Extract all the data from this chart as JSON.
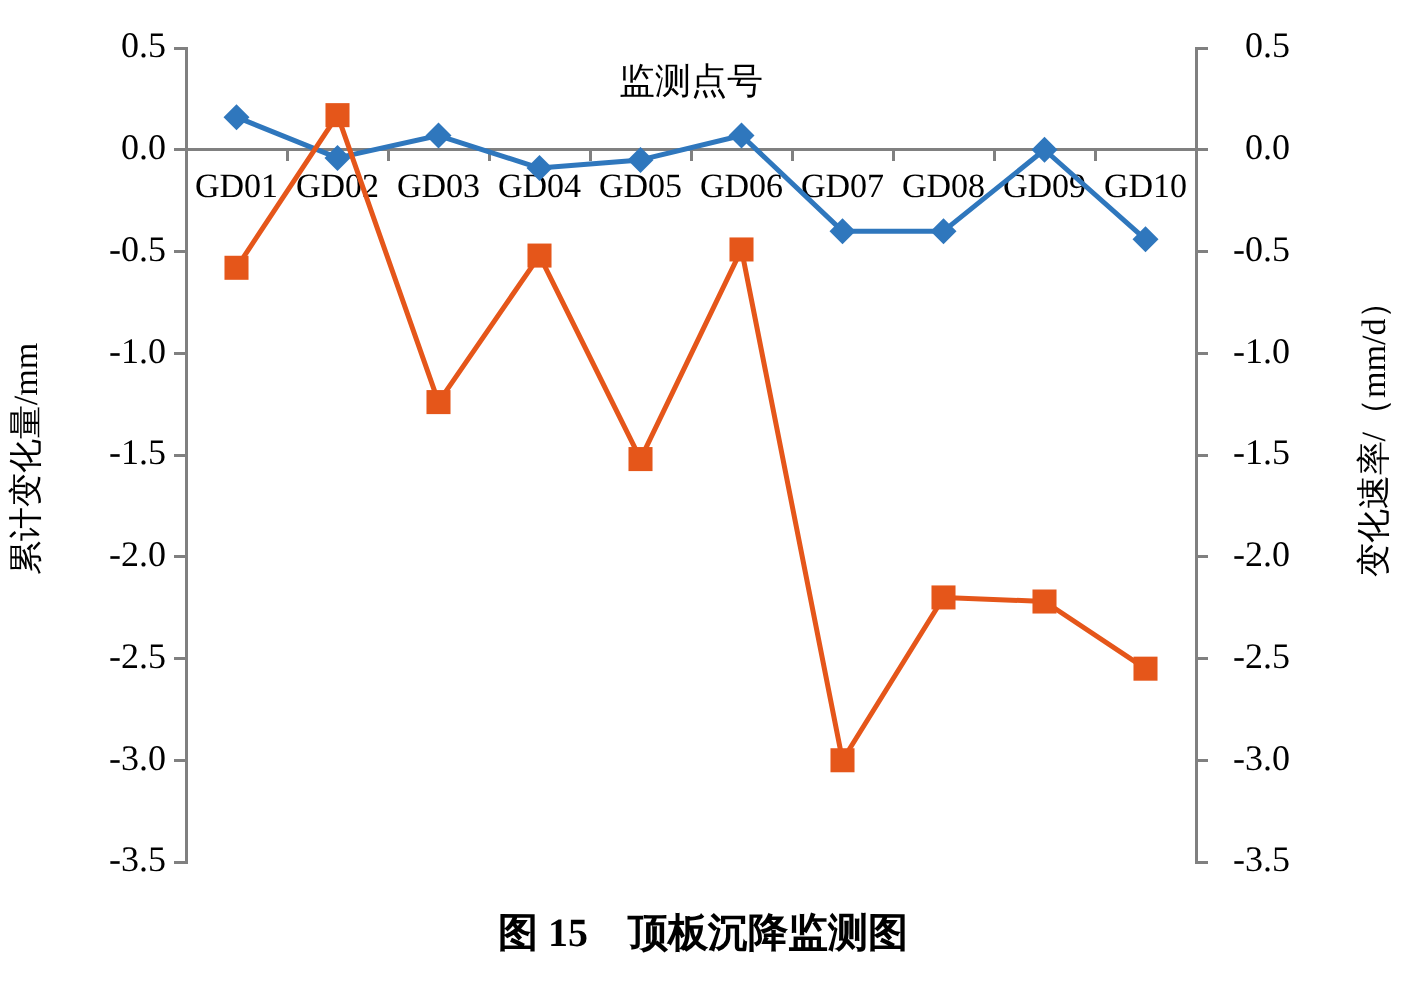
{
  "chart_data": {
    "type": "line",
    "title": "图 15　顶板沉降监测图",
    "xlabel": "监测点号",
    "ylabel": "累计变化量/mm",
    "y2label": "变化速率/（mm/d）",
    "categories": [
      "GD01",
      "GD02",
      "GD03",
      "GD04",
      "GD05",
      "GD06",
      "GD07",
      "GD08",
      "GD09",
      "GD10"
    ],
    "series": [
      {
        "color": "#e5561a",
        "marker": "square",
        "values": [
          -0.58,
          0.17,
          -1.24,
          -0.52,
          -1.52,
          -0.49,
          -3.0,
          -2.2,
          -2.22,
          -2.55
        ]
      },
      {
        "color": "#2f77bd",
        "marker": "diamond",
        "axis": "y2",
        "values": [
          0.16,
          -0.04,
          0.07,
          -0.09,
          -0.05,
          0.07,
          -0.4,
          -0.4,
          0.0,
          -0.44
        ]
      }
    ],
    "ylim": [
      -3.5,
      0.5
    ],
    "yticks": [
      0.5,
      {
        "value": 0,
        "label": "0.0"
      },
      -0.5,
      {
        "value": -1,
        "label": "-1.0"
      },
      -1.5,
      {
        "value": -2,
        "label": "-2.0"
      },
      -2.5,
      {
        "value": -3,
        "label": "-3.0"
      },
      -3.5
    ],
    "y2lim": [
      -3.5,
      0.5
    ],
    "y2ticks": [
      0.5,
      {
        "value": 0,
        "label": "0.0"
      },
      -0.5,
      {
        "value": -1,
        "label": "-1.0"
      },
      -1.5,
      {
        "value": -2,
        "label": "-2.0"
      },
      -2.5,
      {
        "value": -3,
        "label": "-3.0"
      },
      -3.5
    ],
    "grid": false,
    "legend": false
  }
}
